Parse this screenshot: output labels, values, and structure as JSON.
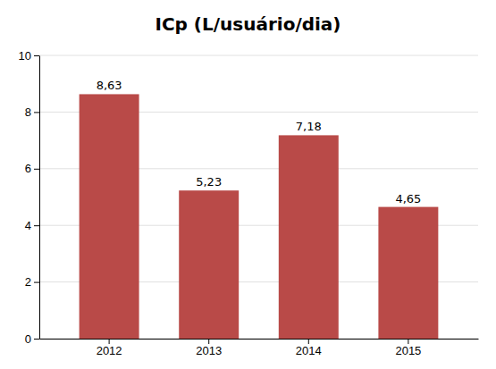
{
  "chart_data": {
    "type": "bar",
    "title": "ICp (L/usuário/dia)",
    "categories": [
      "2012",
      "2013",
      "2014",
      "2015"
    ],
    "values": [
      8.63,
      5.23,
      7.18,
      4.65
    ],
    "value_labels": [
      "8,63",
      "5,23",
      "7,18",
      "4,65"
    ],
    "data_labels": true,
    "color": "#b94a48",
    "ylim": [
      0,
      10
    ],
    "yticks": [
      0,
      2,
      4,
      6,
      8,
      10
    ],
    "grid": true
  }
}
